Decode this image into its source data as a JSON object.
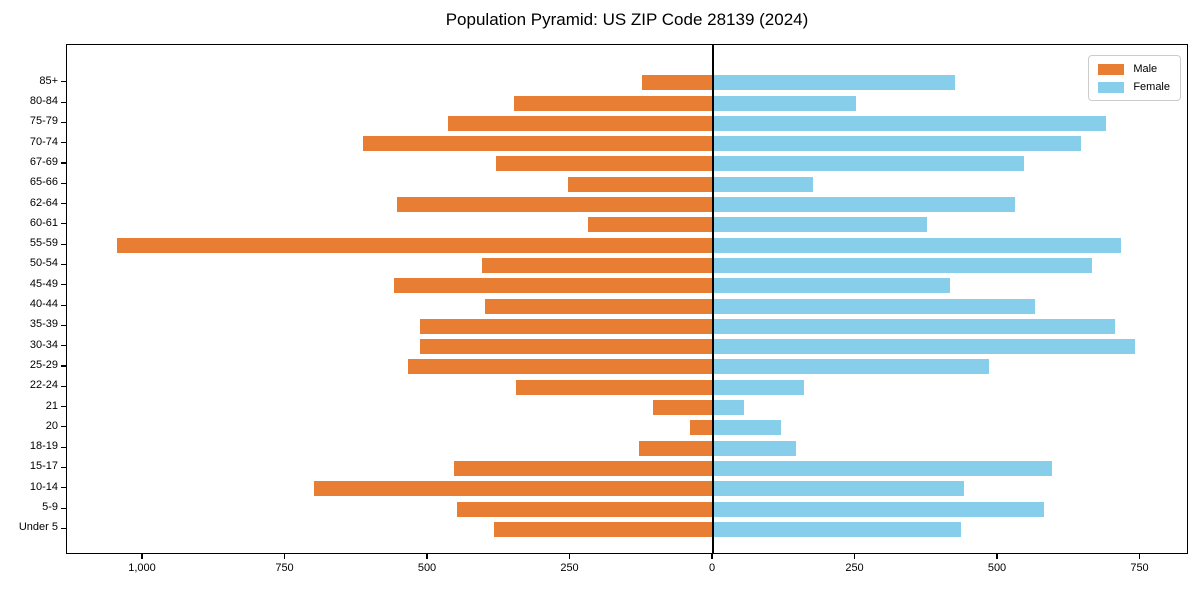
{
  "title": "Population Pyramid: US ZIP Code 28139 (2024)",
  "legend": {
    "male_label": "Male",
    "female_label": "Female"
  },
  "colors": {
    "male": "#E87E34",
    "female": "#87CEEB",
    "axis": "#000000",
    "legend_border": "#cccccc"
  },
  "chart_data": {
    "type": "bar",
    "variant": "population-pyramid",
    "title": "Population Pyramid: US ZIP Code 28139 (2024)",
    "categories_top_to_bottom": [
      "85+",
      "80-84",
      "75-79",
      "70-74",
      "67-69",
      "65-66",
      "62-64",
      "60-61",
      "55-59",
      "50-54",
      "45-49",
      "40-44",
      "35-39",
      "30-34",
      "25-29",
      "22-24",
      "21",
      "20",
      "18-19",
      "15-17",
      "10-14",
      "5-9",
      "Under 5"
    ],
    "series": [
      {
        "name": "Male",
        "side": "left",
        "color": "#E87E34",
        "values": [
          125,
          350,
          465,
          615,
          380,
          255,
          555,
          220,
          1045,
          405,
          560,
          400,
          515,
          515,
          535,
          345,
          105,
          40,
          130,
          455,
          700,
          450,
          385
        ]
      },
      {
        "name": "Female",
        "side": "right",
        "color": "#87CEEB",
        "values": [
          425,
          250,
          690,
          645,
          545,
          175,
          530,
          375,
          715,
          665,
          415,
          565,
          705,
          740,
          485,
          160,
          55,
          120,
          145,
          595,
          440,
          580,
          435
        ]
      }
    ],
    "x_tick_values": [
      -1000,
      -750,
      -500,
      -250,
      0,
      250,
      500,
      750
    ],
    "x_tick_labels": [
      "1,000",
      "750",
      "500",
      "250",
      "0",
      "250",
      "500",
      "750"
    ],
    "xlim": [
      -1134,
      829
    ],
    "ylabel": "",
    "xlabel": "",
    "grid": false,
    "zero_axis_line": true,
    "legend_position": "upper right",
    "legend_entries": [
      "Male",
      "Female"
    ]
  }
}
